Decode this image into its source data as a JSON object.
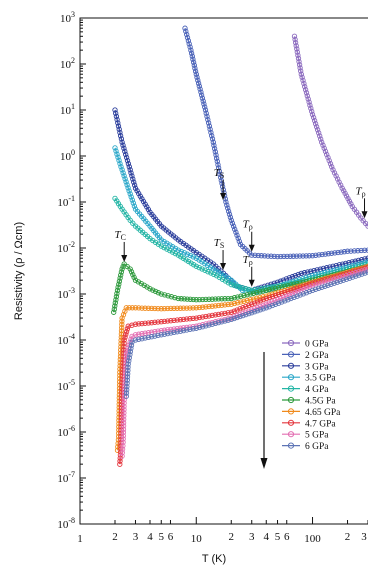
{
  "chart_data": {
    "type": "scatter",
    "title": "",
    "xlabel": "T (K)",
    "ylabel": "Resistivity (ρ / Ωcm)",
    "x_scale": "log",
    "y_scale": "log",
    "xlim": [
      1,
      300
    ],
    "ylim": [
      1e-08,
      1000
    ],
    "grid": false,
    "legend_placement": "bottom-right",
    "x_major_ticks": [
      {
        "value": 1,
        "label": "1"
      },
      {
        "value": 10,
        "label": "10"
      },
      {
        "value": 100,
        "label": "100"
      }
    ],
    "x_minor_ticks": [
      {
        "value": 2,
        "label": "2"
      },
      {
        "value": 3,
        "label": "3"
      },
      {
        "value": 4,
        "label": "4"
      },
      {
        "value": 5,
        "label": "5"
      },
      {
        "value": 6,
        "label": "6"
      },
      {
        "value": 20,
        "label": "2"
      },
      {
        "value": 30,
        "label": "3"
      },
      {
        "value": 40,
        "label": "4"
      },
      {
        "value": 50,
        "label": "5"
      },
      {
        "value": 60,
        "label": "6"
      },
      {
        "value": 200,
        "label": "2"
      },
      {
        "value": 300,
        "label": "3"
      }
    ],
    "y_ticks": [
      {
        "value": 1000,
        "base": "10",
        "exp": "3"
      },
      {
        "value": 100,
        "base": "10",
        "exp": "2"
      },
      {
        "value": 10,
        "base": "10",
        "exp": "1"
      },
      {
        "value": 1,
        "base": "10",
        "exp": "0"
      },
      {
        "value": 0.1,
        "base": "10",
        "exp": "-1"
      },
      {
        "value": 0.01,
        "base": "10",
        "exp": "-2"
      },
      {
        "value": 0.001,
        "base": "10",
        "exp": "-3"
      },
      {
        "value": 0.0001,
        "base": "10",
        "exp": "-4"
      },
      {
        "value": 1e-05,
        "base": "10",
        "exp": "-5"
      },
      {
        "value": 1e-06,
        "base": "10",
        "exp": "-6"
      },
      {
        "value": 1e-07,
        "base": "10",
        "exp": "-7"
      },
      {
        "value": 1e-08,
        "base": "10",
        "exp": "-8"
      }
    ],
    "series": [
      {
        "name": "0 GPa",
        "color": "#8c6bbf",
        "points": [
          [
            70,
            400
          ],
          [
            80,
            60
          ],
          [
            100,
            8
          ],
          [
            120,
            2
          ],
          [
            150,
            0.5
          ],
          [
            180,
            0.2
          ],
          [
            220,
            0.08
          ],
          [
            260,
            0.045
          ],
          [
            300,
            0.03
          ]
        ]
      },
      {
        "name": "2 GPa",
        "color": "#4a62b8",
        "points": [
          [
            8,
            600
          ],
          [
            9,
            200
          ],
          [
            10,
            60
          ],
          [
            12,
            10
          ],
          [
            14,
            2
          ],
          [
            16,
            0.4
          ],
          [
            18,
            0.1
          ],
          [
            20,
            0.04
          ],
          [
            24,
            0.012
          ],
          [
            30,
            0.007
          ],
          [
            50,
            0.0065
          ],
          [
            100,
            0.0068
          ],
          [
            200,
            0.0085
          ],
          [
            300,
            0.009
          ]
        ]
      },
      {
        "name": "3 GPa",
        "color": "#2b3e9c",
        "points": [
          [
            2,
            10
          ],
          [
            2.3,
            2
          ],
          [
            2.7,
            0.5
          ],
          [
            3,
            0.2
          ],
          [
            4,
            0.06
          ],
          [
            5,
            0.03
          ],
          [
            7,
            0.015
          ],
          [
            10,
            0.008
          ],
          [
            14,
            0.0045
          ],
          [
            18,
            0.0025
          ],
          [
            22,
            0.0015
          ],
          [
            30,
            0.0012
          ],
          [
            50,
            0.0018
          ],
          [
            80,
            0.0028
          ],
          [
            150,
            0.004
          ],
          [
            300,
            0.006
          ]
        ]
      },
      {
        "name": "3.5 GPa",
        "color": "#2aa7c9",
        "points": [
          [
            2,
            1.5
          ],
          [
            2.3,
            0.5
          ],
          [
            2.7,
            0.15
          ],
          [
            3,
            0.07
          ],
          [
            4,
            0.03
          ],
          [
            5,
            0.015
          ],
          [
            7,
            0.009
          ],
          [
            10,
            0.006
          ],
          [
            14,
            0.0035
          ],
          [
            20,
            0.002
          ],
          [
            25,
            0.0012
          ],
          [
            35,
            0.0011
          ],
          [
            60,
            0.0017
          ],
          [
            100,
            0.0025
          ],
          [
            300,
            0.005
          ]
        ]
      },
      {
        "name": "4 GPa",
        "color": "#23b5a5",
        "points": [
          [
            2,
            0.12
          ],
          [
            2.3,
            0.07
          ],
          [
            2.7,
            0.04
          ],
          [
            3,
            0.03
          ],
          [
            4,
            0.016
          ],
          [
            5,
            0.011
          ],
          [
            7,
            0.007
          ],
          [
            10,
            0.004
          ],
          [
            15,
            0.0025
          ],
          [
            20,
            0.0016
          ],
          [
            30,
            0.0012
          ],
          [
            60,
            0.0016
          ],
          [
            100,
            0.0022
          ],
          [
            300,
            0.0045
          ]
        ]
      },
      {
        "name": "4.5G Pa",
        "color": "#2e9a3d",
        "points": [
          [
            1.95,
            0.0004
          ],
          [
            2.1,
            0.0012
          ],
          [
            2.3,
            0.0035
          ],
          [
            2.4,
            0.0045
          ],
          [
            2.7,
            0.0035
          ],
          [
            3,
            0.002
          ],
          [
            4,
            0.0013
          ],
          [
            5,
            0.001
          ],
          [
            7,
            0.0008
          ],
          [
            10,
            0.00075
          ],
          [
            20,
            0.0008
          ],
          [
            40,
            0.0012
          ],
          [
            100,
            0.002
          ],
          [
            300,
            0.004
          ]
        ]
      },
      {
        "name": "4.65 GPa",
        "color": "#f08a1c",
        "points": [
          [
            2.1,
            4e-07
          ],
          [
            2.15,
            8e-07
          ],
          [
            2.2,
            2e-05
          ],
          [
            2.3,
            0.0003
          ],
          [
            2.5,
            0.0005
          ],
          [
            3,
            0.0005
          ],
          [
            5,
            0.00048
          ],
          [
            10,
            0.0005
          ],
          [
            20,
            0.0006
          ],
          [
            40,
            0.0009
          ],
          [
            100,
            0.0018
          ],
          [
            300,
            0.004
          ]
        ]
      },
      {
        "name": "4.7 GPa",
        "color": "#e4363e",
        "points": [
          [
            2.2,
            2e-07
          ],
          [
            2.25,
            5e-07
          ],
          [
            2.3,
            1e-05
          ],
          [
            2.4,
            0.0001
          ],
          [
            2.6,
            0.0002
          ],
          [
            3,
            0.00022
          ],
          [
            5,
            0.00025
          ],
          [
            10,
            0.0003
          ],
          [
            20,
            0.0004
          ],
          [
            40,
            0.0008
          ],
          [
            100,
            0.0017
          ],
          [
            300,
            0.0038
          ]
        ]
      },
      {
        "name": "5 GPa",
        "color": "#e36fb2",
        "points": [
          [
            2.3,
            3e-07
          ],
          [
            2.35,
            6e-07
          ],
          [
            2.4,
            5e-06
          ],
          [
            2.5,
            5e-05
          ],
          [
            2.8,
            0.00012
          ],
          [
            3,
            0.00013
          ],
          [
            5,
            0.00016
          ],
          [
            10,
            0.0002
          ],
          [
            20,
            0.0003
          ],
          [
            40,
            0.0006
          ],
          [
            100,
            0.0015
          ],
          [
            300,
            0.0035
          ]
        ]
      },
      {
        "name": "6 GPa",
        "color": "#5d74b5",
        "points": [
          [
            2.5,
            6e-06
          ],
          [
            2.6,
            3e-05
          ],
          [
            2.8,
            9e-05
          ],
          [
            3,
            0.0001
          ],
          [
            5,
            0.00013
          ],
          [
            10,
            0.00018
          ],
          [
            20,
            0.00028
          ],
          [
            40,
            0.0005
          ],
          [
            100,
            0.0012
          ],
          [
            300,
            0.003
          ]
        ]
      }
    ],
    "annotations": [
      {
        "text": "T",
        "sub": "S",
        "x": 17,
        "y": 0.1
      },
      {
        "text": "T",
        "sub": "S",
        "x": 17,
        "y": 0.003
      },
      {
        "text": "T",
        "sub": "ρ",
        "x": 30,
        "y": 0.0075
      },
      {
        "text": "T",
        "sub": "ρ",
        "x": 30,
        "y": 0.0013
      },
      {
        "text": "T",
        "sub": "C",
        "x": 2.4,
        "y": 0.0045
      },
      {
        "text": "T",
        "sub": "ρ",
        "x": 280,
        "y": 0.04
      }
    ]
  }
}
